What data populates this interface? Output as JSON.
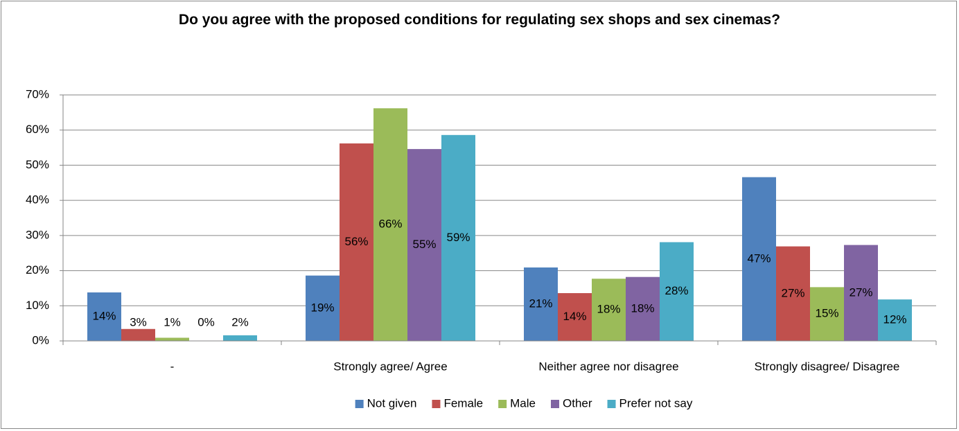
{
  "chart_data": {
    "type": "bar",
    "title": "Do you agree with the proposed conditions for regulating sex shops and sex cinemas?",
    "categories": [
      "-",
      "Strongly agree/ Agree",
      "Neither agree nor disagree",
      "Strongly disagree/ Disagree"
    ],
    "series": [
      {
        "name": "Not given",
        "color": "#4f81bd",
        "values": [
          13.8,
          18.6,
          20.9,
          46.6
        ],
        "value_labels": [
          "14%",
          "19%",
          "21%",
          "47%"
        ]
      },
      {
        "name": "Female",
        "color": "#c0504d",
        "values": [
          3.4,
          56.2,
          13.6,
          26.9
        ],
        "value_labels": [
          "3%",
          "56%",
          "14%",
          "27%"
        ]
      },
      {
        "name": "Male",
        "color": "#9bbb59",
        "values": [
          0.9,
          66.2,
          17.7,
          15.3
        ],
        "value_labels": [
          "1%",
          "66%",
          "18%",
          "15%"
        ]
      },
      {
        "name": "Other",
        "color": "#8064a2",
        "values": [
          0.1,
          54.6,
          18.2,
          27.3
        ],
        "value_labels": [
          "0%",
          "55%",
          "18%",
          "27%"
        ]
      },
      {
        "name": "Prefer not say",
        "color": "#4bacc6",
        "values": [
          1.6,
          58.6,
          28.1,
          11.8
        ],
        "value_labels": [
          "2%",
          "59%",
          "28%",
          "12%"
        ]
      }
    ],
    "ylim": [
      0,
      70
    ],
    "yticks": [
      {
        "value": 0,
        "label": "0%"
      },
      {
        "value": 10,
        "label": "10%"
      },
      {
        "value": 20,
        "label": "20%"
      },
      {
        "value": 30,
        "label": "30%"
      },
      {
        "value": 40,
        "label": "40%"
      },
      {
        "value": 50,
        "label": "50%"
      },
      {
        "value": 60,
        "label": "60%"
      },
      {
        "value": 70,
        "label": "70%"
      }
    ],
    "grid": true,
    "legend": "bottom"
  }
}
